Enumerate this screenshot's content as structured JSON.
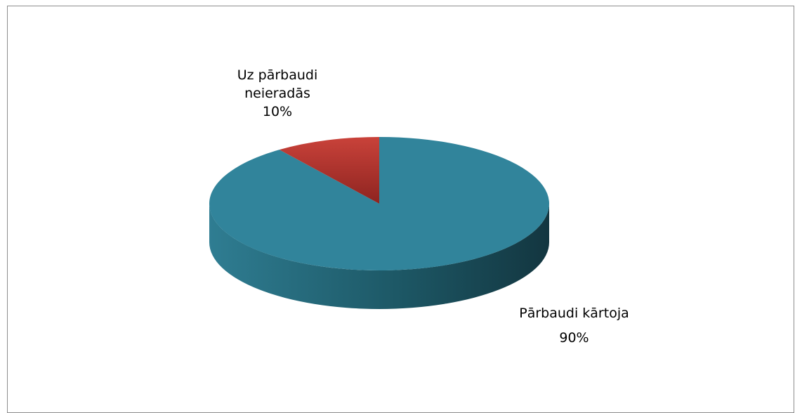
{
  "chart_data": {
    "type": "pie",
    "categories": [
      "Pārbaudi kārtoja",
      "Uz pārbaudi neieradās"
    ],
    "values": [
      90,
      10
    ],
    "value_labels": [
      "90%",
      "10%"
    ],
    "colors": [
      "#31849b",
      "#c0392b"
    ]
  }
}
